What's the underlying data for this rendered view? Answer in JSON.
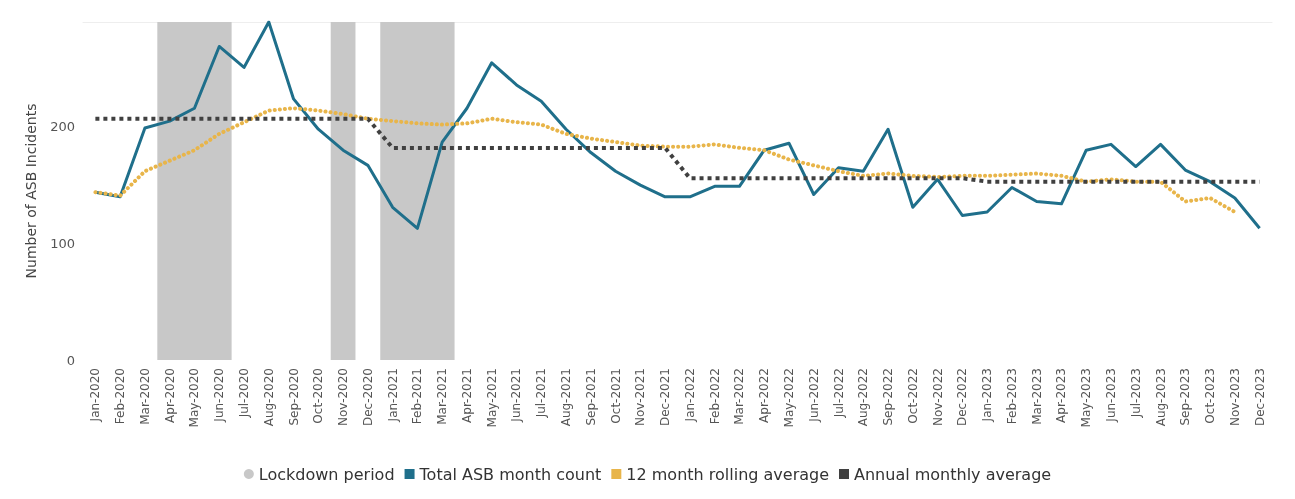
{
  "chart_data": {
    "type": "line",
    "ylabel": "Number of ASB Incidents",
    "categories": [
      "Jan-2020",
      "Feb-2020",
      "Mar-2020",
      "Apr-2020",
      "May-2020",
      "Jun-2020",
      "Jul-2020",
      "Aug-2020",
      "Sep-2020",
      "Oct-2020",
      "Nov-2020",
      "Dec-2020",
      "Jan-2021",
      "Feb-2021",
      "Mar-2021",
      "Apr-2021",
      "May-2021",
      "Jun-2021",
      "Jul-2021",
      "Aug-2021",
      "Sep-2021",
      "Oct-2021",
      "Nov-2021",
      "Dec-2021",
      "Jan-2022",
      "Feb-2022",
      "Mar-2022",
      "Apr-2022",
      "May-2022",
      "Jun-2022",
      "Jul-2022",
      "Aug-2022",
      "Sep-2022",
      "Oct-2022",
      "Nov-2022",
      "Dec-2022",
      "Jan-2023",
      "Feb-2023",
      "Mar-2023",
      "Apr-2023",
      "May-2023",
      "Jun-2023",
      "Jul-2023",
      "Aug-2023",
      "Sep-2023",
      "Oct-2023",
      "Nov-2023",
      "Dec-2023"
    ],
    "series": [
      {
        "name": "Total ASB month count",
        "color": "#1f6f8b",
        "line_style": "solid",
        "values": [
          144,
          140,
          199,
          205,
          216,
          269,
          251,
          290,
          224,
          198,
          180,
          167,
          131,
          113,
          187,
          216,
          255,
          236,
          222,
          198,
          178,
          162,
          150,
          140,
          140,
          149,
          149,
          180,
          186,
          142,
          165,
          162,
          198,
          131,
          155,
          124,
          127,
          148,
          136,
          134,
          180,
          185,
          166,
          185,
          163,
          153,
          139,
          113
        ]
      },
      {
        "name": "12 month rolling average",
        "color": "#e8b54a",
        "line_style": "dotted",
        "values": [
          144,
          141,
          162,
          171,
          180,
          194,
          204,
          214,
          216,
          214,
          211,
          207,
          205,
          203,
          202,
          203,
          207,
          204,
          202,
          194,
          190,
          187,
          184,
          183,
          183,
          185,
          182,
          180,
          172,
          167,
          162,
          158,
          160,
          158,
          157,
          158,
          158,
          159,
          160,
          158,
          153,
          155,
          153,
          153,
          136,
          139,
          127,
          null
        ]
      },
      {
        "name": "Annual monthly average",
        "color": "#404040",
        "line_style": "dashed",
        "values": [
          207,
          207,
          207,
          207,
          207,
          207,
          207,
          207,
          207,
          207,
          207,
          207,
          182,
          182,
          182,
          182,
          182,
          182,
          182,
          182,
          182,
          182,
          182,
          182,
          156,
          156,
          156,
          156,
          156,
          156,
          156,
          156,
          156,
          156,
          156,
          156,
          153,
          153,
          153,
          153,
          153,
          153,
          153,
          153,
          153,
          153,
          153,
          153
        ]
      }
    ],
    "ylim": [
      0,
      290
    ],
    "yticks": [
      0,
      100,
      200
    ],
    "bands": [
      {
        "axis": "x",
        "from": "Apr-2020",
        "to": "Jun-2020",
        "label": "Lockdown period",
        "color": "#c8c8c8"
      },
      {
        "axis": "x",
        "from": "Nov-2020",
        "to": "Nov-2020",
        "color": "#c8c8c8"
      },
      {
        "axis": "x",
        "from": "Jan-2021",
        "to": "Mar-2021",
        "color": "#c8c8c8"
      }
    ],
    "legend": "bottom"
  }
}
